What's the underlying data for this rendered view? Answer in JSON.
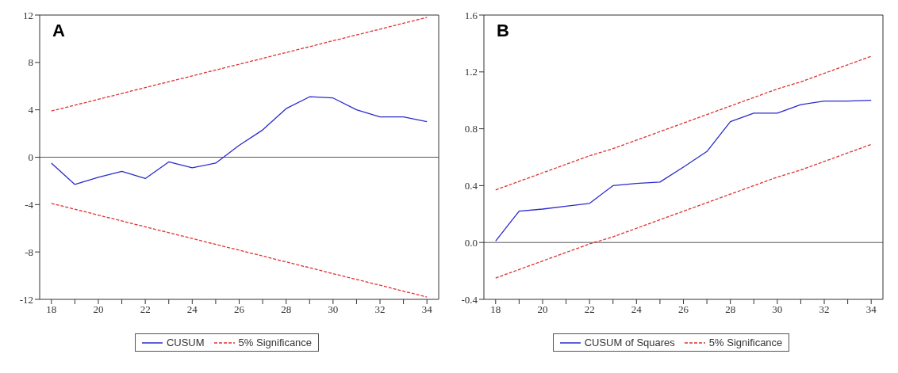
{
  "chart_data": [
    {
      "type": "line",
      "title": "A",
      "x": [
        18,
        19,
        20,
        21,
        22,
        23,
        24,
        25,
        26,
        27,
        28,
        29,
        30,
        31,
        32,
        33,
        34
      ],
      "xlim": [
        17.5,
        34.5
      ],
      "xticks": [
        18,
        {
          "value": 19,
          "label": null
        },
        20,
        {
          "value": 21,
          "label": null
        },
        22,
        {
          "value": 23,
          "label": null
        },
        24,
        {
          "value": 25,
          "label": null
        },
        26,
        {
          "value": 27,
          "label": null
        },
        28,
        {
          "value": 29,
          "label": null
        },
        30,
        {
          "value": 31,
          "label": null
        },
        32,
        {
          "value": 33,
          "label": null
        },
        34
      ],
      "ylim": [
        -12,
        12
      ],
      "yticks": [
        -12,
        -8,
        -4,
        0,
        4,
        8,
        12
      ],
      "grid": false,
      "legend": "bottom",
      "marker": "none",
      "ref_lines": [
        {
          "axis": "y",
          "value": 0,
          "color": "#555555"
        }
      ],
      "series": [
        {
          "name": "CUSUM",
          "color": "#2a2acc",
          "values": [
            -0.5,
            -2.3,
            -1.7,
            -1.2,
            -1.8,
            -0.4,
            -0.9,
            -0.5,
            1.0,
            2.3,
            4.1,
            5.1,
            5.0,
            4.0,
            3.4,
            3.4,
            3.0
          ]
        },
        {
          "name": "5% Significance",
          "color": "#e03030",
          "line_style": "dashed",
          "values": [
            3.9,
            4.39,
            4.89,
            5.38,
            5.88,
            6.37,
            6.86,
            7.36,
            7.85,
            8.34,
            8.84,
            9.33,
            9.83,
            10.32,
            10.81,
            11.31,
            11.8
          ]
        },
        {
          "color": "#e03030",
          "line_style": "dashed",
          "values": [
            -3.9,
            -4.39,
            -4.89,
            -5.38,
            -5.88,
            -6.37,
            -6.86,
            -7.36,
            -7.85,
            -8.34,
            -8.84,
            -9.33,
            -9.83,
            -10.32,
            -10.81,
            -11.31,
            -11.8
          ]
        }
      ]
    },
    {
      "type": "line",
      "title": "B",
      "x": [
        18,
        19,
        20,
        21,
        22,
        23,
        24,
        25,
        26,
        27,
        28,
        29,
        30,
        31,
        32,
        33,
        34
      ],
      "xlim": [
        17.5,
        34.5
      ],
      "xticks": [
        18,
        {
          "value": 19,
          "label": null
        },
        20,
        {
          "value": 21,
          "label": null
        },
        22,
        {
          "value": 23,
          "label": null
        },
        24,
        {
          "value": 25,
          "label": null
        },
        26,
        {
          "value": 27,
          "label": null
        },
        28,
        {
          "value": 29,
          "label": null
        },
        30,
        {
          "value": 31,
          "label": null
        },
        32,
        {
          "value": 33,
          "label": null
        },
        34
      ],
      "ylim": [
        -0.4,
        1.6
      ],
      "yticks": [
        {
          "value": -0.4,
          "label": "-0.4"
        },
        {
          "value": 0,
          "label": "0.0"
        },
        0.4,
        0.8,
        1.2,
        1.6
      ],
      "grid": false,
      "legend": "bottom",
      "marker": "none",
      "ref_lines": [
        {
          "axis": "y",
          "value": 0,
          "color": "#555555"
        }
      ],
      "series": [
        {
          "name": "CUSUM of Squares",
          "color": "#2a2acc",
          "values": [
            0.01,
            0.22,
            0.235,
            0.255,
            0.275,
            0.4,
            0.415,
            0.425,
            0.53,
            0.64,
            0.85,
            0.91,
            0.91,
            0.97,
            0.995,
            0.995,
            1.0
          ]
        },
        {
          "name": "5% Significance",
          "color": "#e03030",
          "line_style": "dashed",
          "values": [
            0.37,
            0.43,
            0.49,
            0.55,
            0.61,
            0.66,
            0.72,
            0.78,
            0.84,
            0.9,
            0.96,
            1.02,
            1.08,
            1.13,
            1.19,
            1.25,
            1.31
          ]
        },
        {
          "color": "#e03030",
          "line_style": "dashed",
          "values": [
            -0.25,
            -0.19,
            -0.13,
            -0.07,
            -0.01,
            0.04,
            0.1,
            0.16,
            0.22,
            0.28,
            0.34,
            0.4,
            0.46,
            0.51,
            0.57,
            0.63,
            0.69
          ]
        }
      ]
    }
  ]
}
